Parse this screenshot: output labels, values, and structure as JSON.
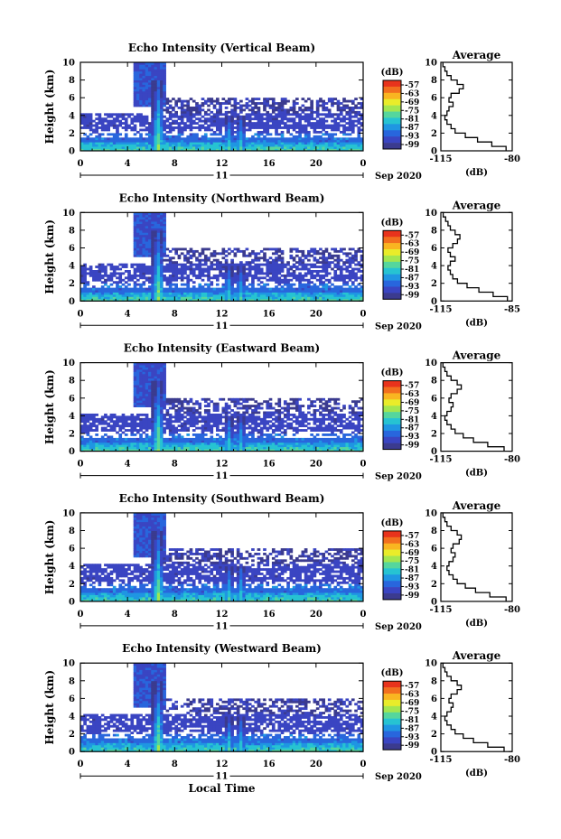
{
  "figure": {
    "xlabel": "Local Time",
    "date_label": "Sep 2020",
    "day_label": "11",
    "colorbar_unit": "(dB)",
    "colorbar_ticks": [
      "-57",
      "-63",
      "-69",
      "-75",
      "-81",
      "-87",
      "-93",
      "-99"
    ],
    "colorbar_colors": [
      "#e8331c",
      "#f26f1e",
      "#f9b521",
      "#e9ec2a",
      "#a2e650",
      "#55d69d",
      "#26c3d2",
      "#1f96e2",
      "#2866dd",
      "#3a45c2",
      "#3b3b8f"
    ]
  },
  "chart_data": [
    {
      "type": "heatmap",
      "title": "Echo Intensity (Vertical Beam)",
      "xlabel": "Local Time",
      "ylabel": "Height (km)",
      "xlim": [
        0,
        24
      ],
      "ylim": [
        0,
        10
      ],
      "xticks": [
        "0",
        "4",
        "8",
        "12",
        "16",
        "20",
        "0"
      ],
      "yticks": [
        "0",
        "2",
        "4",
        "6",
        "8",
        "10"
      ],
      "colorbar": {
        "label": "(dB)",
        "range": [
          -99,
          -57
        ]
      },
      "average": {
        "title": "Average",
        "xlabel": "(dB)",
        "xticks": [
          "-115",
          "-80"
        ],
        "xlim": [
          -115,
          -80
        ],
        "ylim": [
          0,
          10
        ],
        "height_km": [
          0,
          0.5,
          1,
          1.5,
          2,
          2.5,
          3,
          3.5,
          4,
          4.5,
          5,
          5.5,
          6,
          6.5,
          7,
          7.5,
          8,
          8.5,
          9,
          9.5
        ],
        "db": [
          -83,
          -90,
          -97,
          -103,
          -108,
          -110,
          -112,
          -113,
          -112,
          -111,
          -109,
          -111,
          -110,
          -106,
          -104,
          -107,
          -110,
          -112,
          -113,
          -114
        ]
      }
    },
    {
      "type": "heatmap",
      "title": "Echo Intensity (Northward Beam)",
      "xlabel": "Local Time",
      "ylabel": "Height (km)",
      "xlim": [
        0,
        24
      ],
      "ylim": [
        0,
        10
      ],
      "xticks": [
        "0",
        "4",
        "8",
        "12",
        "16",
        "20",
        "0"
      ],
      "yticks": [
        "0",
        "2",
        "4",
        "6",
        "8",
        "10"
      ],
      "colorbar": {
        "label": "(dB)",
        "range": [
          -99,
          -57
        ]
      },
      "average": {
        "title": "Average",
        "xlabel": "(dB)",
        "xticks": [
          "-115",
          "-85"
        ],
        "xlim": [
          -115,
          -85
        ],
        "ylim": [
          0,
          10
        ],
        "height_km": [
          0,
          0.5,
          1,
          1.5,
          2,
          2.5,
          3,
          3.5,
          4,
          4.5,
          5,
          5.5,
          6,
          6.5,
          7,
          7.5,
          8,
          8.5,
          9,
          9.5
        ],
        "db": [
          -87,
          -93,
          -99,
          -104,
          -108,
          -110,
          -111,
          -112,
          -111,
          -109,
          -111,
          -112,
          -110,
          -108,
          -107,
          -109,
          -111,
          -112,
          -113,
          -114
        ]
      }
    },
    {
      "type": "heatmap",
      "title": "Echo Intensity (Eastward Beam)",
      "xlabel": "Local Time",
      "ylabel": "Height (km)",
      "xlim": [
        0,
        24
      ],
      "ylim": [
        0,
        10
      ],
      "xticks": [
        "0",
        "4",
        "8",
        "12",
        "16",
        "20",
        "0"
      ],
      "yticks": [
        "0",
        "2",
        "4",
        "6",
        "8",
        "10"
      ],
      "colorbar": {
        "label": "(dB)",
        "range": [
          -99,
          -57
        ]
      },
      "average": {
        "title": "Average",
        "xlabel": "(dB)",
        "xticks": [
          "-115",
          "-80"
        ],
        "xlim": [
          -115,
          -80
        ],
        "ylim": [
          0,
          10
        ],
        "height_km": [
          0,
          0.5,
          1,
          1.5,
          2,
          2.5,
          3,
          3.5,
          4,
          4.5,
          5,
          5.5,
          6,
          6.5,
          7,
          7.5,
          8,
          8.5,
          9,
          9.5
        ],
        "db": [
          -84,
          -92,
          -99,
          -104,
          -108,
          -110,
          -112,
          -113,
          -112,
          -110,
          -109,
          -111,
          -110,
          -107,
          -105,
          -107,
          -110,
          -112,
          -113,
          -114
        ]
      }
    },
    {
      "type": "heatmap",
      "title": "Echo Intensity (Southward Beam)",
      "xlabel": "Local Time",
      "ylabel": "Height (km)",
      "xlim": [
        0,
        24
      ],
      "ylim": [
        0,
        10
      ],
      "xticks": [
        "0",
        "4",
        "8",
        "12",
        "16",
        "20",
        "0"
      ],
      "yticks": [
        "0",
        "2",
        "4",
        "6",
        "8",
        "10"
      ],
      "colorbar": {
        "label": "(dB)",
        "range": [
          -99,
          -57
        ]
      },
      "average": {
        "title": "Average",
        "xlabel": "(dB)",
        "xticks": [
          "-115",
          "-80"
        ],
        "xlim": [
          -115,
          -80
        ],
        "ylim": [
          0,
          10
        ],
        "height_km": [
          0,
          0.5,
          1,
          1.5,
          2,
          2.5,
          3,
          3.5,
          4,
          4.5,
          5,
          5.5,
          6,
          6.5,
          7,
          7.5,
          8,
          8.5,
          9,
          9.5
        ],
        "db": [
          -83,
          -91,
          -98,
          -103,
          -107,
          -109,
          -111,
          -112,
          -111,
          -109,
          -108,
          -110,
          -109,
          -106,
          -105,
          -107,
          -110,
          -112,
          -113,
          -114
        ]
      }
    },
    {
      "type": "heatmap",
      "title": "Echo Intensity (Westward Beam)",
      "xlabel": "Local Time",
      "ylabel": "Height (km)",
      "xlim": [
        0,
        24
      ],
      "ylim": [
        0,
        10
      ],
      "xticks": [
        "0",
        "4",
        "8",
        "12",
        "16",
        "20",
        "0"
      ],
      "yticks": [
        "0",
        "2",
        "4",
        "6",
        "8",
        "10"
      ],
      "colorbar": {
        "label": "(dB)",
        "range": [
          -99,
          -57
        ]
      },
      "average": {
        "title": "Average",
        "xlabel": "(dB)",
        "xticks": [
          "-115",
          "-80"
        ],
        "xlim": [
          -115,
          -80
        ],
        "ylim": [
          0,
          10
        ],
        "height_km": [
          0,
          0.5,
          1,
          1.5,
          2,
          2.5,
          3,
          3.5,
          4,
          4.5,
          5,
          5.5,
          6,
          6.5,
          7,
          7.5,
          8,
          8.5,
          9,
          9.5
        ],
        "db": [
          -84,
          -92,
          -99,
          -104,
          -108,
          -110,
          -112,
          -113,
          -112,
          -110,
          -109,
          -111,
          -110,
          -107,
          -105,
          -107,
          -110,
          -112,
          -113,
          -114
        ]
      }
    }
  ]
}
